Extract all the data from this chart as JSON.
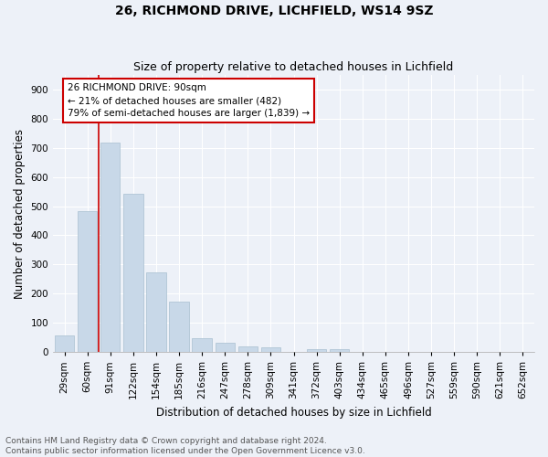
{
  "title1": "26, RICHMOND DRIVE, LICHFIELD, WS14 9SZ",
  "title2": "Size of property relative to detached houses in Lichfield",
  "xlabel": "Distribution of detached houses by size in Lichfield",
  "ylabel": "Number of detached properties",
  "footnote1": "Contains HM Land Registry data © Crown copyright and database right 2024.",
  "footnote2": "Contains public sector information licensed under the Open Government Licence v3.0.",
  "categories": [
    "29sqm",
    "60sqm",
    "91sqm",
    "122sqm",
    "154sqm",
    "185sqm",
    "216sqm",
    "247sqm",
    "278sqm",
    "309sqm",
    "341sqm",
    "372sqm",
    "403sqm",
    "434sqm",
    "465sqm",
    "496sqm",
    "527sqm",
    "559sqm",
    "590sqm",
    "621sqm",
    "652sqm"
  ],
  "values": [
    57,
    482,
    718,
    542,
    272,
    172,
    46,
    32,
    18,
    15,
    0,
    8,
    8,
    0,
    0,
    0,
    0,
    0,
    0,
    0,
    0
  ],
  "bar_color": "#c8d8e8",
  "bar_edge_color": "#a8bfd0",
  "property_line_color": "#cc0000",
  "annotation_text": "26 RICHMOND DRIVE: 90sqm\n← 21% of detached houses are smaller (482)\n79% of semi-detached houses are larger (1,839) →",
  "annotation_box_facecolor": "#ffffff",
  "annotation_box_edgecolor": "#cc0000",
  "ylim": [
    0,
    950
  ],
  "yticks": [
    0,
    100,
    200,
    300,
    400,
    500,
    600,
    700,
    800,
    900
  ],
  "background_color": "#edf1f8",
  "grid_color": "#ffffff",
  "title1_fontsize": 10,
  "title2_fontsize": 9,
  "axis_label_fontsize": 8.5,
  "tick_fontsize": 7.5,
  "annotation_fontsize": 7.5,
  "footnote_fontsize": 6.5
}
